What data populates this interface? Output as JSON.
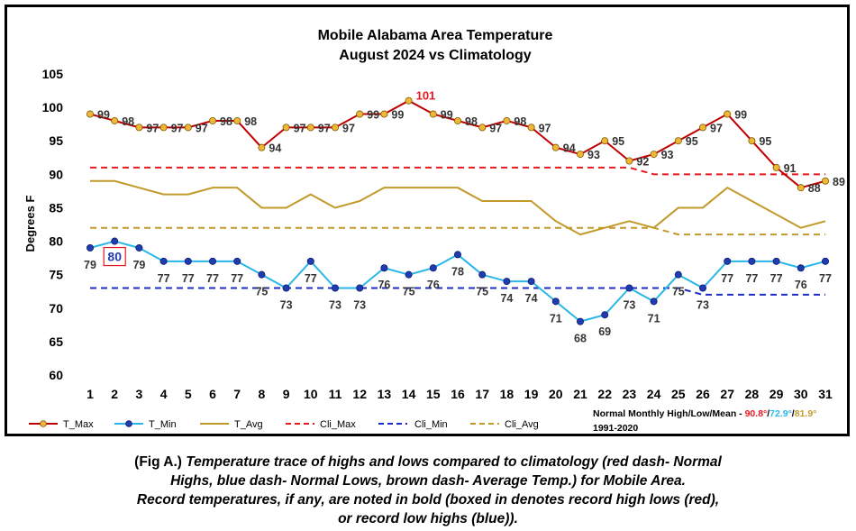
{
  "chart_data": {
    "type": "line",
    "title": "Mobile Alabama Area Temperature",
    "subtitle": "August 2024 vs Climatology",
    "ylabel": "Degrees F",
    "xlabel": "",
    "ylim": [
      60,
      105
    ],
    "yticks": [
      60,
      65,
      70,
      75,
      80,
      85,
      90,
      95,
      100,
      105
    ],
    "x": [
      1,
      2,
      3,
      4,
      5,
      6,
      7,
      8,
      9,
      10,
      11,
      12,
      13,
      14,
      15,
      16,
      17,
      18,
      19,
      20,
      21,
      22,
      23,
      24,
      25,
      26,
      27,
      28,
      29,
      30,
      31
    ],
    "grid": false,
    "legend_position": "bottom",
    "colors": {
      "tmax": "#c00000",
      "tmax_marker": "#f2b636",
      "tmin": "#29b6e8",
      "tmin_marker": "#1f3cb0",
      "tavg": "#c29a2a",
      "cli_max": "#e8181f",
      "cli_min": "#1c2cc8",
      "cli_avg": "#c29a2a",
      "record_high": "#e8181f",
      "record_low_box_text": "#1f3cb0"
    },
    "series": [
      {
        "name": "T_Max",
        "values": [
          99,
          98,
          97,
          97,
          97,
          98,
          98,
          94,
          97,
          97,
          97,
          99,
          99,
          101,
          99,
          98,
          97,
          98,
          97,
          94,
          93,
          95,
          92,
          93,
          95,
          97,
          99,
          95,
          91,
          88,
          89
        ]
      },
      {
        "name": "T_Min",
        "values": [
          79,
          80,
          79,
          77,
          77,
          77,
          77,
          75,
          73,
          77,
          73,
          73,
          76,
          75,
          76,
          78,
          75,
          74,
          74,
          71,
          68,
          69,
          73,
          71,
          75,
          73,
          77,
          77,
          77,
          76,
          77
        ]
      },
      {
        "name": "T_Avg",
        "values": [
          89,
          89,
          88,
          87,
          87,
          88,
          88,
          85,
          85,
          87,
          85,
          86,
          88,
          88,
          88,
          88,
          86,
          86,
          86,
          83,
          81,
          82,
          83,
          82,
          85,
          85,
          88,
          86,
          84,
          82,
          83
        ]
      },
      {
        "name": "Cli_Max",
        "values": [
          91,
          91,
          91,
          91,
          91,
          91,
          91,
          91,
          91,
          91,
          91,
          91,
          91,
          91,
          91,
          91,
          91,
          91,
          91,
          91,
          91,
          91,
          91,
          90,
          90,
          90,
          90,
          90,
          90,
          90,
          90
        ]
      },
      {
        "name": "Cli_Min",
        "values": [
          73,
          73,
          73,
          73,
          73,
          73,
          73,
          73,
          73,
          73,
          73,
          73,
          73,
          73,
          73,
          73,
          73,
          73,
          73,
          73,
          73,
          73,
          73,
          73,
          73,
          72,
          72,
          72,
          72,
          72,
          72
        ]
      },
      {
        "name": "Cli_Avg",
        "values": [
          82,
          82,
          82,
          82,
          82,
          82,
          82,
          82,
          82,
          82,
          82,
          82,
          82,
          82,
          82,
          82,
          82,
          82,
          82,
          82,
          82,
          82,
          82,
          82,
          81,
          81,
          81,
          81,
          81,
          81,
          81
        ]
      }
    ],
    "record_high_day": 14,
    "record_high_low_day": 2,
    "normals": {
      "label": "Normal Monthly High/Low/Mean - ",
      "high": "90.8°",
      "low": "72.9°",
      "mean": "81.9°",
      "sep": "/",
      "period": "1991-2020"
    }
  },
  "caption": {
    "prefix": "(Fig A.) ",
    "line1": "Temperature trace of highs and lows compared to climatology (red dash- Normal",
    "line2": "Highs, blue dash- Normal Lows, brown dash- Average Temp.) for Mobile Area.",
    "line3": "Record temperatures, if any, are noted in bold (boxed in denotes record high lows (red),",
    "line4": "or record low highs (blue))."
  }
}
